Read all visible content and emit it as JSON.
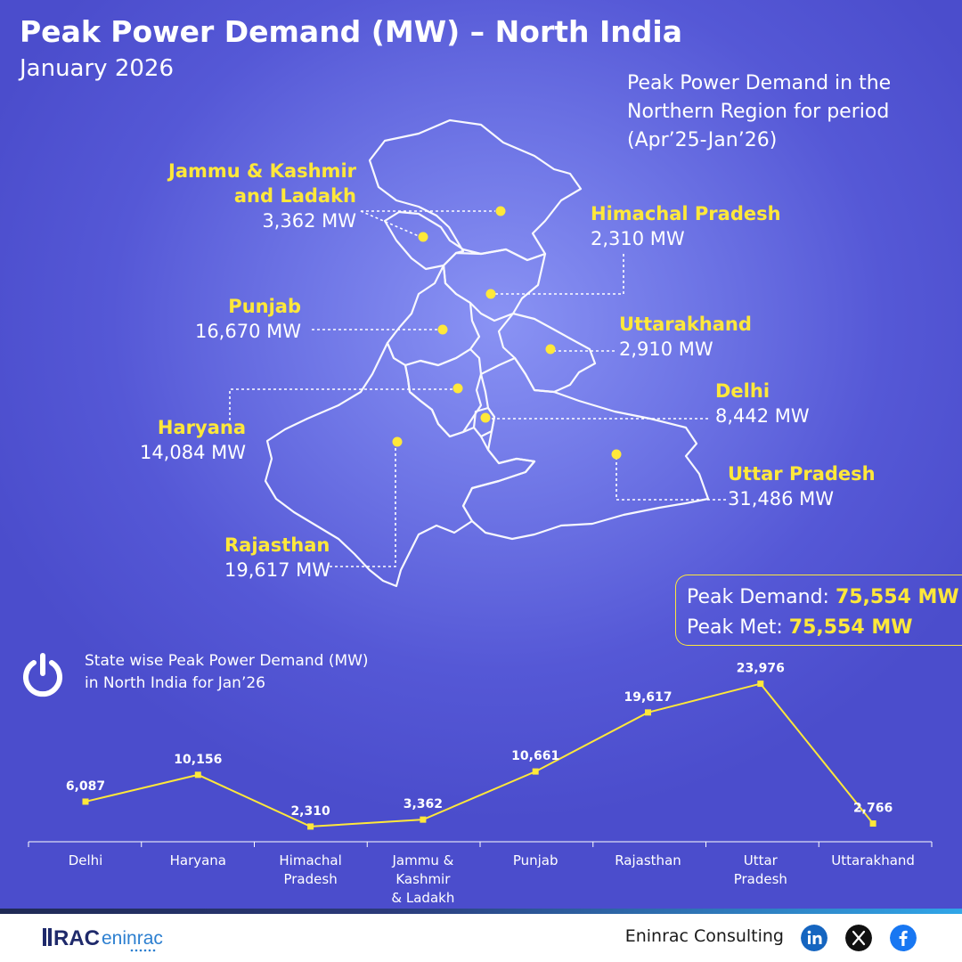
{
  "header": {
    "title": "Peak Power Demand (MW) – North India",
    "subtitle": "January 2026",
    "note": "Peak Power Demand in the Northern Region for period (Apr’25-Jan’26)"
  },
  "map": {
    "regions": [
      {
        "name_line1": "Jammu & Kashmir",
        "name_line2": "and Ladakh",
        "value": "3,362 MW"
      },
      {
        "name_line1": "Himachal Pradesh",
        "value": "2,310 MW"
      },
      {
        "name_line1": "Punjab",
        "value": "16,670 MW"
      },
      {
        "name_line1": "Uttarakhand",
        "value": "2,910 MW"
      },
      {
        "name_line1": "Delhi",
        "value": "8,442 MW"
      },
      {
        "name_line1": "Haryana",
        "value": "14,084 MW"
      },
      {
        "name_line1": "Uttar Pradesh",
        "value": "31,486 MW"
      },
      {
        "name_line1": "Rajasthan",
        "value": "19,617 MW"
      }
    ]
  },
  "summary": {
    "demand_label": "Peak Demand: ",
    "demand_value": "75,554 MW",
    "met_label": "Peak Met: ",
    "met_value": "75,554 MW"
  },
  "chart_caption": {
    "line1": "State wise Peak Power Demand (MW)",
    "line2": "in North India for Jan’26"
  },
  "chart_data": {
    "type": "line",
    "categories": [
      "Delhi",
      "Haryana",
      "Himachal Pradesh",
      "Jammu & Kashmir & Ladakh",
      "Punjab",
      "Rajasthan",
      "Uttar Pradesh",
      "Uttarakhand"
    ],
    "category_lines": [
      [
        "Delhi"
      ],
      [
        "Haryana"
      ],
      [
        "Himachal",
        "Pradesh"
      ],
      [
        "Jammu &",
        "Kashmir",
        "& Ladakh"
      ],
      [
        "Punjab"
      ],
      [
        "Rajasthan"
      ],
      [
        "Uttar",
        "Pradesh"
      ],
      [
        "Uttarakhand"
      ]
    ],
    "values": [
      6087,
      10156,
      2310,
      3362,
      10661,
      19617,
      23976,
      2766
    ],
    "value_labels": [
      "6,087",
      "10,156",
      "2,310",
      "3,362",
      "10,661",
      "19,617",
      "23,976",
      "2,766"
    ],
    "ylim": [
      0,
      25000
    ],
    "grid": false,
    "line_color": "#ffe83a"
  },
  "footer": {
    "logo_text": "RAC eninrac",
    "brand": "Eninrac Consulting"
  },
  "icons": [
    "power-icon",
    "linkedin-icon",
    "x-icon",
    "facebook-icon"
  ]
}
